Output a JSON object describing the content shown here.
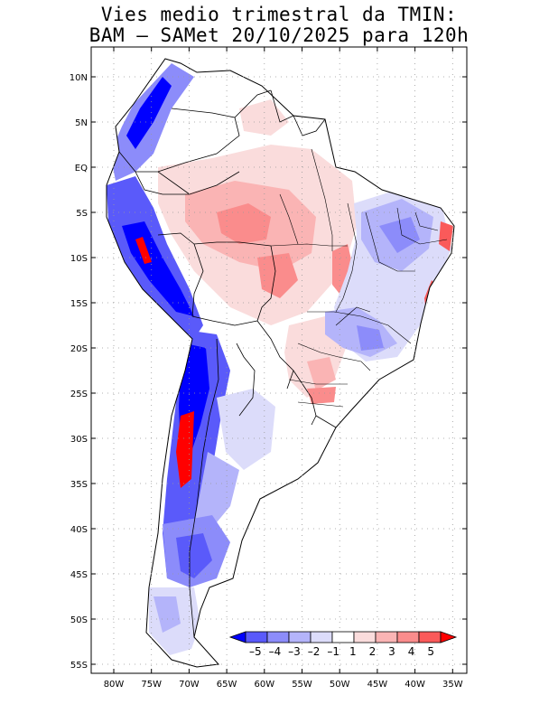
{
  "title_line1": "Vies medio trimestral da TMIN:",
  "title_line2": "BAM – SAMet 20/10/2025  para 120h",
  "lat_labels": [
    "10N",
    "5N",
    "EQ",
    "5S",
    "10S",
    "15S",
    "20S",
    "25S",
    "30S",
    "35S",
    "40S",
    "45S",
    "50S",
    "55S"
  ],
  "lon_labels": [
    "80W",
    "75W",
    "70W",
    "65W",
    "60W",
    "55W",
    "50W",
    "45W",
    "40W",
    "35W"
  ],
  "colorbar": {
    "labels": [
      "–5",
      "–4",
      "–3",
      "–2",
      "–1",
      "1",
      "2",
      "3",
      "4",
      "5"
    ],
    "colors": [
      "#0000ff",
      "#5a5afa",
      "#8c8cfa",
      "#b4b4fa",
      "#dcdcfa",
      "#ffffff",
      "#fadcdc",
      "#fab4b4",
      "#fa8c8c",
      "#fa5a5a",
      "#ff0000"
    ]
  },
  "colors": {
    "strong_negative": "#0000ff",
    "negative": "#8c8cfa",
    "weak_negative": "#dcdcfa",
    "weak_positive": "#fadcdc",
    "positive": "#fa8c8c",
    "strong_positive": "#ff0000"
  }
}
